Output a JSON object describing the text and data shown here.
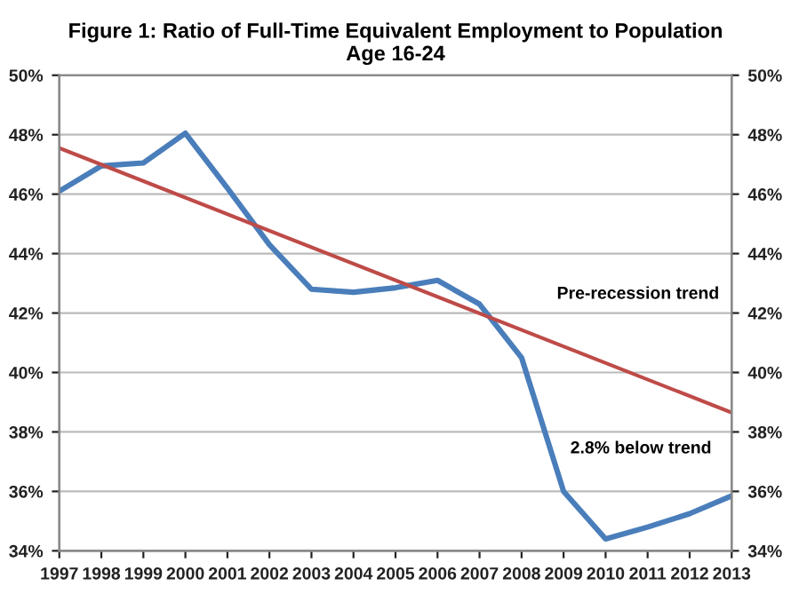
{
  "chart_data": {
    "type": "line",
    "title": "Figure 1: Ratio of Full-Time Equivalent Employment to Population\nAge 16-24",
    "x": [
      1997,
      1998,
      1999,
      2000,
      2001,
      2002,
      2003,
      2004,
      2005,
      2006,
      2007,
      2008,
      2009,
      2010,
      2011,
      2012,
      2013
    ],
    "series": [
      {
        "color": "#4a7ebb",
        "values": [
          46.1,
          46.95,
          47.05,
          48.05,
          46.2,
          44.3,
          42.8,
          42.7,
          42.85,
          43.1,
          42.3,
          40.5,
          36.0,
          34.4,
          34.8,
          35.25,
          35.85
        ]
      },
      {
        "color": "#be4b48",
        "x": [
          1997,
          2013
        ],
        "values": [
          47.55,
          38.65
        ]
      }
    ],
    "xlim": [
      1997,
      2013
    ],
    "xticks": [
      1997,
      1998,
      1999,
      2000,
      2001,
      2002,
      2003,
      2004,
      2005,
      2006,
      2007,
      2008,
      2009,
      2010,
      2011,
      2012,
      2013
    ],
    "ylim": [
      34,
      50
    ],
    "yticks": [
      {
        "value": 34,
        "label": "34%"
      },
      {
        "value": 36,
        "label": "36%"
      },
      {
        "value": 38,
        "label": "38%"
      },
      {
        "value": 40,
        "label": "40%"
      },
      {
        "value": 42,
        "label": "42%"
      },
      {
        "value": 44,
        "label": "44%"
      },
      {
        "value": 46,
        "label": "46%"
      },
      {
        "value": 48,
        "label": "48%"
      },
      {
        "value": 50,
        "label": "50%"
      }
    ],
    "y2lim": [
      34,
      50
    ],
    "y2ticks": [
      {
        "value": 34,
        "label": "34%"
      },
      {
        "value": 36,
        "label": "36%"
      },
      {
        "value": 38,
        "label": "38%"
      },
      {
        "value": 40,
        "label": "40%"
      },
      {
        "value": 42,
        "label": "42%"
      },
      {
        "value": 44,
        "label": "44%"
      },
      {
        "value": 46,
        "label": "46%"
      },
      {
        "value": 48,
        "label": "48%"
      },
      {
        "value": 50,
        "label": "50%"
      }
    ],
    "grid": "y",
    "legend": false,
    "marker": "none",
    "line_style": "solid",
    "annotations": [
      "Pre-recession trend",
      "2.8% below trend"
    ]
  }
}
